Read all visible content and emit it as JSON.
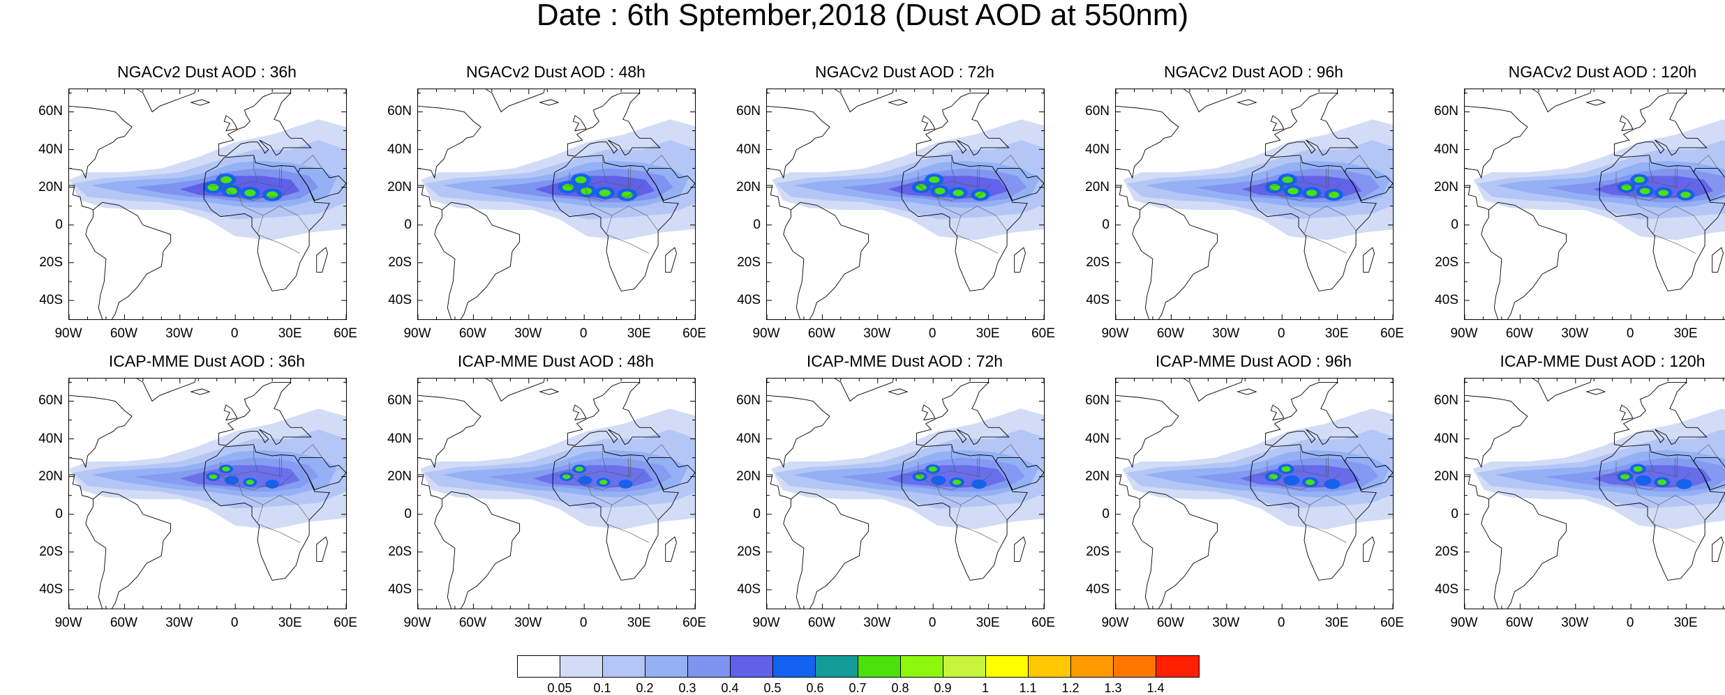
{
  "page_title": "Date : 6th Sptember,2018 (Dust AOD at 550nm)",
  "rows": [
    {
      "model": "NGACv2",
      "panels": [
        {
          "title": "NGACv2 Dust AOD : 36h",
          "plume_shift": 0.0,
          "intensity": 1.0
        },
        {
          "title": "NGACv2 Dust AOD : 48h",
          "plume_shift": 0.08,
          "intensity": 1.0
        },
        {
          "title": "NGACv2 Dust AOD : 72h",
          "plume_shift": 0.14,
          "intensity": 0.95
        },
        {
          "title": "NGACv2 Dust AOD : 96h",
          "plume_shift": 0.2,
          "intensity": 0.95
        },
        {
          "title": "NGACv2 Dust AOD : 120h",
          "plume_shift": 0.24,
          "intensity": 0.9
        }
      ]
    },
    {
      "model": "ICAP-MME",
      "panels": [
        {
          "title": "ICAP-MME Dust AOD : 36h",
          "plume_shift": 0.0,
          "intensity": 0.7
        },
        {
          "title": "ICAP-MME Dust AOD : 48h",
          "plume_shift": 0.06,
          "intensity": 0.7
        },
        {
          "title": "ICAP-MME Dust AOD : 72h",
          "plume_shift": 0.12,
          "intensity": 0.75
        },
        {
          "title": "ICAP-MME Dust AOD : 96h",
          "plume_shift": 0.18,
          "intensity": 0.8
        },
        {
          "title": "ICAP-MME Dust AOD : 120h",
          "plume_shift": 0.22,
          "intensity": 0.8
        }
      ]
    }
  ],
  "lat_ticks": [
    "60N",
    "40N",
    "20N",
    "0",
    "20S",
    "40S"
  ],
  "lon_ticks": [
    "90W",
    "60W",
    "30W",
    "0",
    "30E",
    "60E"
  ],
  "colorbar": {
    "labels": [
      "0.05",
      "0.1",
      "0.2",
      "0.3",
      "0.4",
      "0.5",
      "0.6",
      "0.7",
      "0.8",
      "0.9",
      "1",
      "1.1",
      "1.2",
      "1.3",
      "1.4"
    ],
    "colors": [
      "#ffffff",
      "#d2dcf7",
      "#b4c6f6",
      "#94b1f5",
      "#7f93f0",
      "#6060e8",
      "#1362f2",
      "#129c98",
      "#4ce00d",
      "#8cf70c",
      "#c6f53c",
      "#ffff00",
      "#ffc800",
      "#ff9b00",
      "#ff7700",
      "#ff2000"
    ]
  }
}
